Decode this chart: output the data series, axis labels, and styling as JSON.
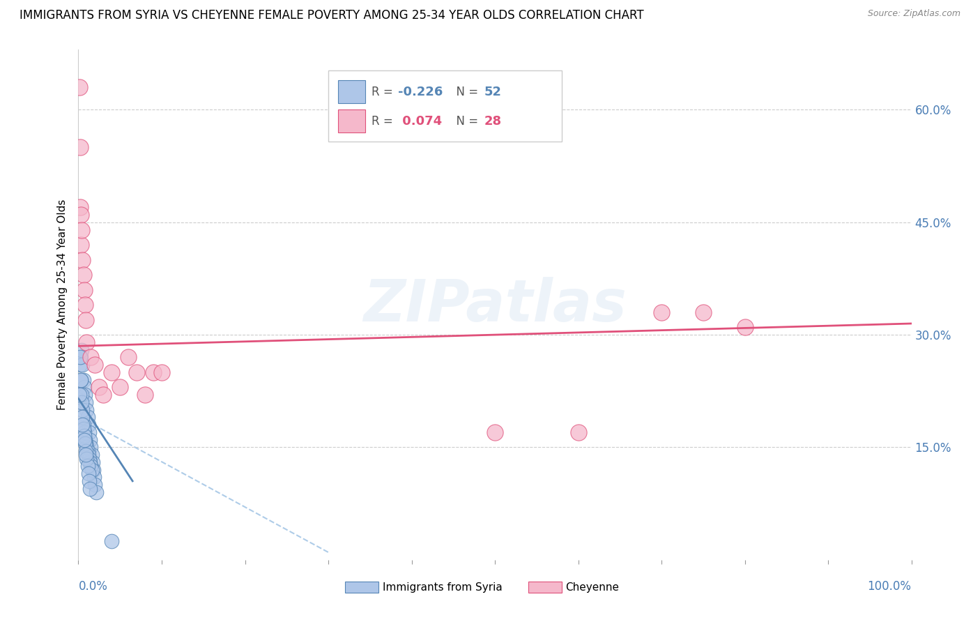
{
  "title": "IMMIGRANTS FROM SYRIA VS CHEYENNE FEMALE POVERTY AMONG 25-34 YEAR OLDS CORRELATION CHART",
  "source": "Source: ZipAtlas.com",
  "ylabel": "Female Poverty Among 25-34 Year Olds",
  "xlim": [
    0,
    1.0
  ],
  "ylim": [
    0,
    0.68
  ],
  "legend_blue_R": "-0.226",
  "legend_blue_N": "52",
  "legend_pink_R": "0.074",
  "legend_pink_N": "28",
  "label_blue": "Immigrants from Syria",
  "label_pink": "Cheyenne",
  "blue_color": "#aec6e8",
  "pink_color": "#f5b8cb",
  "blue_line_color": "#5585b5",
  "pink_line_color": "#e0507a",
  "dashed_line_color": "#aecce8",
  "watermark": "ZIPatlas",
  "blue_scatter_x": [
    0.002,
    0.003,
    0.004,
    0.005,
    0.006,
    0.007,
    0.008,
    0.009,
    0.01,
    0.011,
    0.012,
    0.013,
    0.014,
    0.015,
    0.016,
    0.017,
    0.018,
    0.019,
    0.02,
    0.021,
    0.003,
    0.004,
    0.005,
    0.006,
    0.007,
    0.008,
    0.009,
    0.01,
    0.011,
    0.012,
    0.013,
    0.014,
    0.015,
    0.016,
    0.004,
    0.005,
    0.006,
    0.007,
    0.008,
    0.009,
    0.01,
    0.011,
    0.012,
    0.013,
    0.014,
    0.003,
    0.005,
    0.007,
    0.009,
    0.002,
    0.04,
    0.001
  ],
  "blue_scatter_y": [
    0.26,
    0.27,
    0.28,
    0.26,
    0.24,
    0.23,
    0.22,
    0.21,
    0.2,
    0.19,
    0.18,
    0.17,
    0.16,
    0.15,
    0.14,
    0.13,
    0.12,
    0.11,
    0.1,
    0.09,
    0.24,
    0.22,
    0.2,
    0.18,
    0.17,
    0.16,
    0.155,
    0.15,
    0.145,
    0.14,
    0.135,
    0.13,
    0.125,
    0.12,
    0.21,
    0.19,
    0.175,
    0.165,
    0.155,
    0.145,
    0.135,
    0.125,
    0.115,
    0.105,
    0.095,
    0.24,
    0.18,
    0.16,
    0.14,
    0.27,
    0.025,
    0.22
  ],
  "pink_scatter_x": [
    0.001,
    0.002,
    0.002,
    0.003,
    0.003,
    0.004,
    0.005,
    0.006,
    0.007,
    0.008,
    0.009,
    0.01,
    0.015,
    0.02,
    0.025,
    0.03,
    0.04,
    0.05,
    0.06,
    0.07,
    0.08,
    0.09,
    0.1,
    0.5,
    0.6,
    0.7,
    0.75,
    0.8
  ],
  "pink_scatter_y": [
    0.63,
    0.55,
    0.47,
    0.46,
    0.42,
    0.44,
    0.4,
    0.38,
    0.36,
    0.34,
    0.32,
    0.29,
    0.27,
    0.26,
    0.23,
    0.22,
    0.25,
    0.23,
    0.27,
    0.25,
    0.22,
    0.25,
    0.25,
    0.17,
    0.17,
    0.33,
    0.33,
    0.31
  ],
  "blue_trend_x": [
    0.0,
    0.065
  ],
  "blue_trend_y": [
    0.215,
    0.105
  ],
  "pink_trend_x": [
    0.0,
    1.0
  ],
  "pink_trend_y": [
    0.285,
    0.315
  ],
  "dashed_trend_x": [
    0.01,
    0.3
  ],
  "dashed_trend_y": [
    0.185,
    0.01
  ]
}
